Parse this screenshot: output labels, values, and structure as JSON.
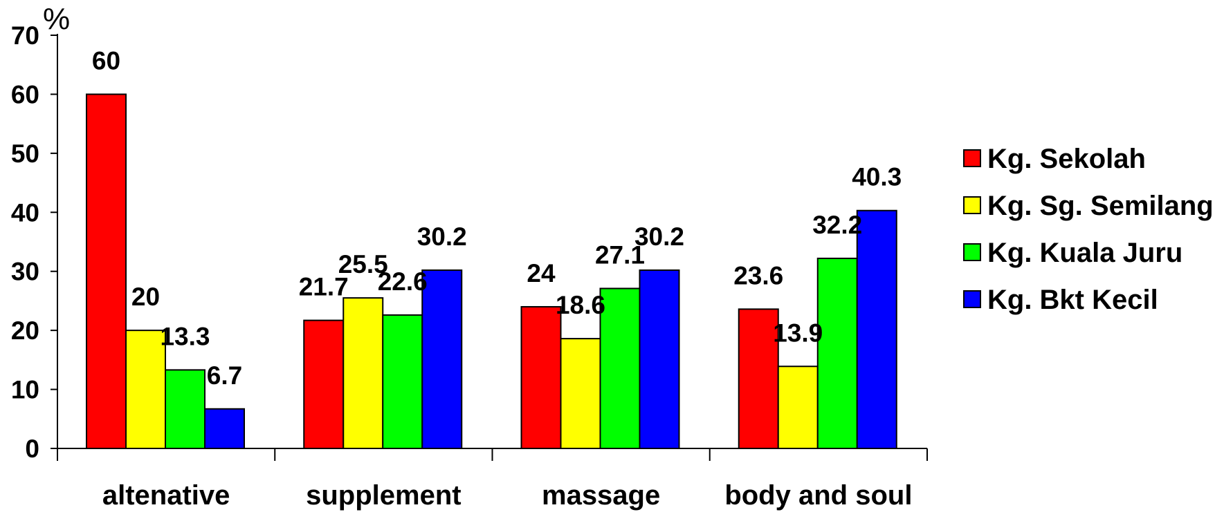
{
  "chart_data": {
    "type": "bar",
    "y_unit": "%",
    "categories": [
      "altenative",
      "supplement",
      "massage",
      "body and soul"
    ],
    "series": [
      {
        "name": "Kg. Sekolah",
        "color": "#ff0000",
        "values": [
          60,
          21.7,
          24,
          23.6
        ]
      },
      {
        "name": "Kg. Sg. Semilang",
        "color": "#ffff00",
        "values": [
          20,
          25.5,
          18.6,
          13.9
        ]
      },
      {
        "name": "Kg. Kuala Juru",
        "color": "#00ff00",
        "values": [
          13.3,
          22.6,
          27.1,
          32.2
        ]
      },
      {
        "name": "Kg. Bkt Kecil",
        "color": "#0000ff",
        "values": [
          6.7,
          30.2,
          30.2,
          40.3
        ]
      }
    ],
    "bar_heights_note_free": true,
    "ylim": [
      0,
      70
    ],
    "yticks": [
      0,
      10,
      20,
      30,
      40,
      50,
      60,
      70
    ],
    "grid": false,
    "legend_position": "right"
  }
}
